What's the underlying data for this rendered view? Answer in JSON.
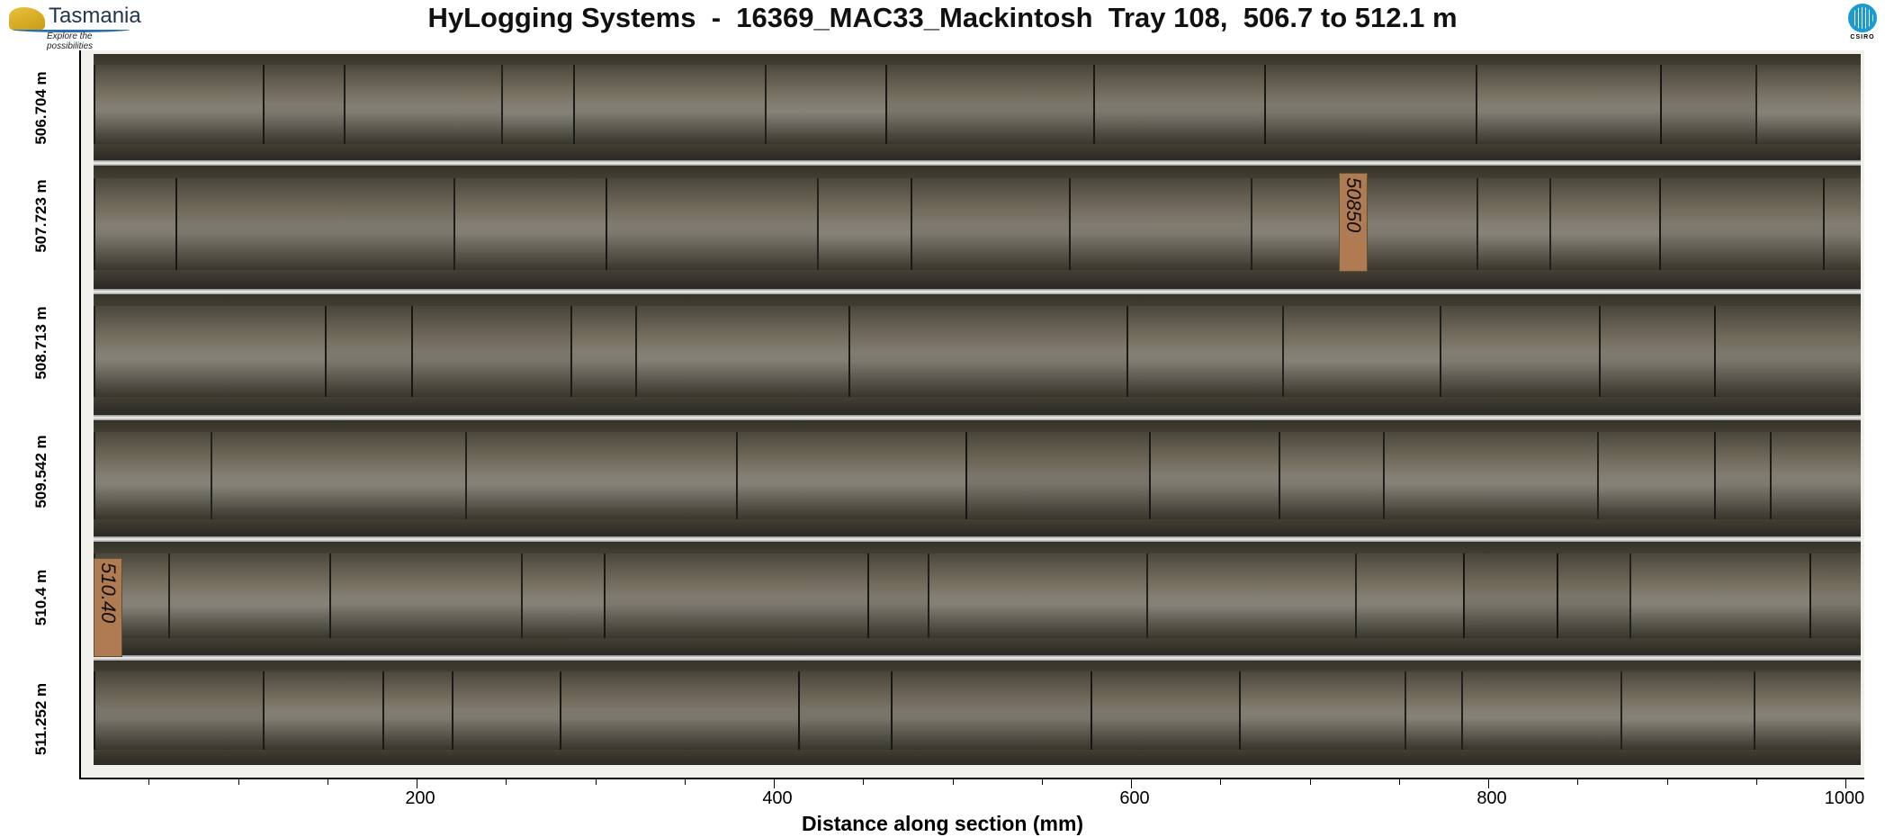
{
  "header": {
    "title": "HyLogging Systems  -  16369_MAC33_Mackintosh  Tray 108,  506.7 to 512.1 m",
    "logo_left": {
      "brand": "Tasmania",
      "tagline": "Explore the possibilities"
    },
    "logo_right": {
      "brand": "CSIRO"
    }
  },
  "depth_labels": [
    "506.704 m",
    "507.723 m",
    "508.713 m",
    "509.542 m",
    "510.4 m",
    "511.252 m"
  ],
  "core_markers": [
    "50850",
    "510.40"
  ],
  "x_axis": {
    "label": "Distance along section (mm)",
    "range": [
      0,
      1000
    ],
    "major_ticks": [
      "200",
      "400",
      "600",
      "800",
      "1000"
    ],
    "minor_step": 50
  },
  "colors": {
    "rock": "#4a4840",
    "rod": "#e8e8e8",
    "marker": "#b07a52"
  }
}
